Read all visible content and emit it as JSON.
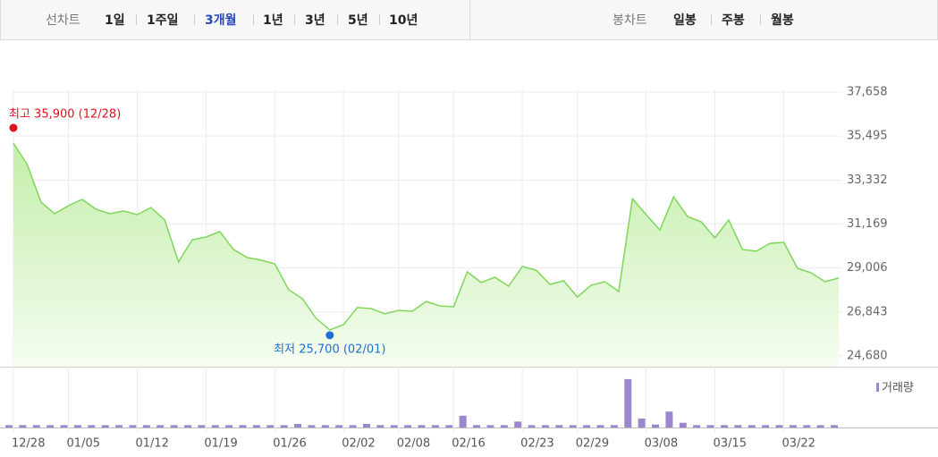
{
  "toolbar": {
    "line_chart_label": "선차트",
    "periods": [
      "1일",
      "1주일",
      "3개월",
      "1년",
      "3년",
      "5년",
      "10년"
    ],
    "candle_chart_label": "봉차트",
    "candles": [
      "일봉",
      "주봉",
      "월봉"
    ]
  },
  "chart_data": [
    {
      "type": "line",
      "color": "#7fd65a",
      "categories": [
        "12/28",
        null,
        null,
        null,
        "01/05",
        null,
        null,
        null,
        null,
        "01/12",
        null,
        null,
        null,
        null,
        "01/19",
        null,
        null,
        null,
        null,
        "01/26",
        null,
        null,
        null,
        null,
        "02/02",
        null,
        null,
        null,
        "02/08",
        null,
        null,
        null,
        "02/16",
        null,
        null,
        null,
        null,
        "02/23",
        null,
        null,
        null,
        "02/29",
        null,
        null,
        null,
        null,
        "03/08",
        null,
        null,
        null,
        null,
        "03/15",
        null,
        null,
        null,
        null,
        "03/22",
        null,
        null,
        null,
        null
      ],
      "values": [
        35150,
        34100,
        32250,
        31680,
        32070,
        32380,
        31900,
        31680,
        31810,
        31630,
        31980,
        31370,
        29300,
        30400,
        30530,
        30800,
        29920,
        29520,
        29390,
        29210,
        27940,
        27500,
        26530,
        25960,
        26220,
        27060,
        27010,
        26750,
        26920,
        26880,
        27360,
        27140,
        27100,
        28820,
        28290,
        28550,
        28110,
        29080,
        28900,
        28200,
        28380,
        27580,
        28160,
        28330,
        27850,
        32420,
        31630,
        30880,
        32510,
        31540,
        31280,
        30490,
        31370,
        29920,
        29830,
        30220,
        30270,
        28990,
        28770,
        28330,
        28510
      ],
      "ylim": [
        24680,
        37658
      ],
      "yticks": [
        {
          "value": 24680,
          "label": "24,680"
        },
        {
          "value": 26843,
          "label": "26,843"
        },
        {
          "value": 29006,
          "label": "29,006"
        },
        {
          "value": 31169,
          "label": "31,169"
        },
        {
          "value": 33332,
          "label": "33,332"
        },
        {
          "value": 35495,
          "label": "35,495"
        },
        {
          "value": 37658,
          "label": "37,658"
        }
      ],
      "grid": true,
      "annotations": [
        {
          "text": "최고 35,900 (12/28)",
          "value": 35900,
          "at": "max",
          "color": "#e0101e"
        },
        {
          "text": "최저 25,700 (02/01)",
          "value": 25700,
          "at": "min",
          "color": "#1f6fd1"
        }
      ]
    },
    {
      "type": "bar",
      "ylim": [
        0,
        100
      ],
      "series": [
        {
          "name": "거래량",
          "color": "#9b87cc",
          "values": [
            4,
            4,
            4,
            4,
            4,
            4,
            4,
            4,
            4,
            4,
            4,
            4,
            4,
            4,
            4,
            4,
            4,
            4,
            4,
            4,
            4,
            6,
            4,
            4,
            4,
            4,
            6,
            4,
            4,
            4,
            4,
            4,
            4,
            20,
            4,
            4,
            4,
            10,
            4,
            4,
            4,
            4,
            4,
            4,
            4,
            82,
            15,
            5,
            27,
            8,
            4,
            4,
            4,
            4,
            4,
            4,
            4,
            4,
            4,
            4,
            4
          ]
        }
      ]
    }
  ]
}
